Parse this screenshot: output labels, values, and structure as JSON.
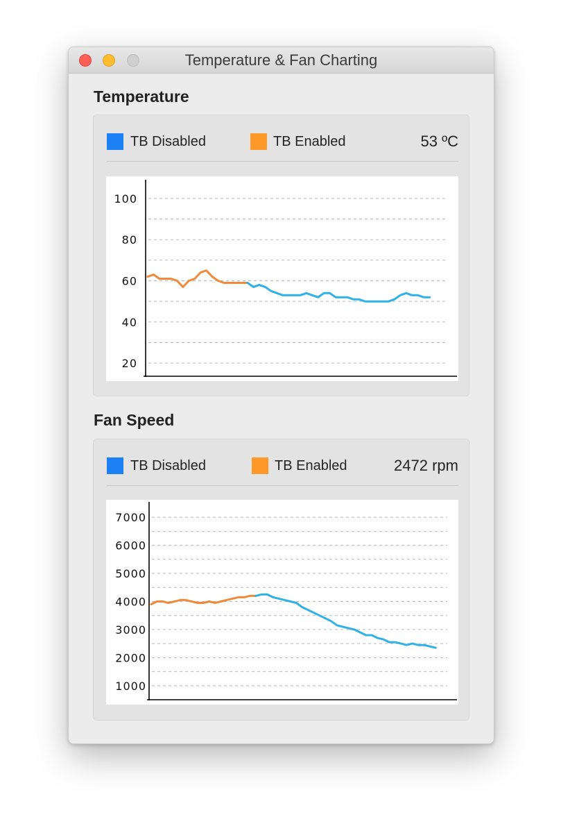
{
  "window": {
    "title": "Temperature & Fan Charting"
  },
  "colors": {
    "disabled": "#1e80f5",
    "enabled": "#fe9829",
    "line_blue": "#2fb0e6",
    "line_orange": "#f08a3a"
  },
  "temperature": {
    "title": "Temperature",
    "legend": {
      "disabled": "TB Disabled",
      "enabled": "TB Enabled"
    },
    "readout": "53 ºC",
    "chart_data": {
      "type": "line",
      "ylim": [
        15,
        105
      ],
      "yticks": [
        20,
        40,
        60,
        80,
        100
      ],
      "grid": true,
      "series": [
        {
          "name": "TB Enabled",
          "color": "orange",
          "x": [
            0,
            2,
            4,
            6,
            8,
            10,
            12,
            14,
            16,
            18,
            20,
            22,
            24,
            26,
            28,
            30,
            32,
            34
          ],
          "y": [
            62,
            63,
            61,
            61,
            61,
            60,
            57,
            60,
            61,
            64,
            65,
            62,
            60,
            59,
            59,
            59,
            59,
            59
          ]
        },
        {
          "name": "TB Disabled",
          "color": "blue",
          "x": [
            34,
            36,
            38,
            40,
            42,
            44,
            46,
            48,
            50,
            52,
            54,
            56,
            58,
            60,
            62,
            64,
            66,
            68,
            70,
            72,
            74,
            76,
            78,
            80,
            82,
            84,
            86,
            88,
            90,
            92,
            94,
            96
          ],
          "y": [
            59,
            57,
            58,
            57,
            55,
            54,
            53,
            53,
            53,
            53,
            54,
            53,
            52,
            54,
            54,
            52,
            52,
            52,
            51,
            51,
            50,
            50,
            50,
            50,
            50,
            51,
            53,
            54,
            53,
            53,
            52,
            52
          ]
        }
      ],
      "xlim": [
        0,
        102
      ]
    }
  },
  "fan": {
    "title": "Fan Speed",
    "legend": {
      "disabled": "TB Disabled",
      "enabled": "TB Enabled"
    },
    "readout": "2472 rpm",
    "chart_data": {
      "type": "line",
      "ylim": [
        600,
        7250
      ],
      "yticks": [
        1000,
        2000,
        3000,
        4000,
        5000,
        6000,
        7000
      ],
      "grid": true,
      "series": [
        {
          "name": "TB Enabled",
          "color": "orange",
          "x": [
            0,
            2,
            4,
            6,
            8,
            10,
            12,
            14,
            16,
            18,
            20,
            22,
            24,
            26,
            28,
            30,
            32,
            34,
            36
          ],
          "y": [
            3900,
            4000,
            4000,
            3950,
            4000,
            4050,
            4050,
            4000,
            3950,
            3950,
            4000,
            3950,
            4000,
            4050,
            4100,
            4150,
            4150,
            4200,
            4200
          ]
        },
        {
          "name": "TB Disabled",
          "color": "blue",
          "x": [
            36,
            38,
            40,
            42,
            44,
            46,
            48,
            50,
            52,
            54,
            56,
            58,
            60,
            62,
            64,
            66,
            68,
            70,
            72,
            74,
            76,
            78,
            80,
            82,
            84,
            86,
            88,
            90,
            92,
            94,
            96,
            98
          ],
          "y": [
            4200,
            4250,
            4250,
            4150,
            4100,
            4050,
            4000,
            3950,
            3800,
            3700,
            3600,
            3500,
            3400,
            3300,
            3150,
            3100,
            3050,
            3000,
            2900,
            2800,
            2800,
            2700,
            2650,
            2550,
            2550,
            2500,
            2450,
            2500,
            2450,
            2450,
            2400,
            2350
          ]
        }
      ],
      "xlim": [
        0,
        102
      ]
    }
  }
}
